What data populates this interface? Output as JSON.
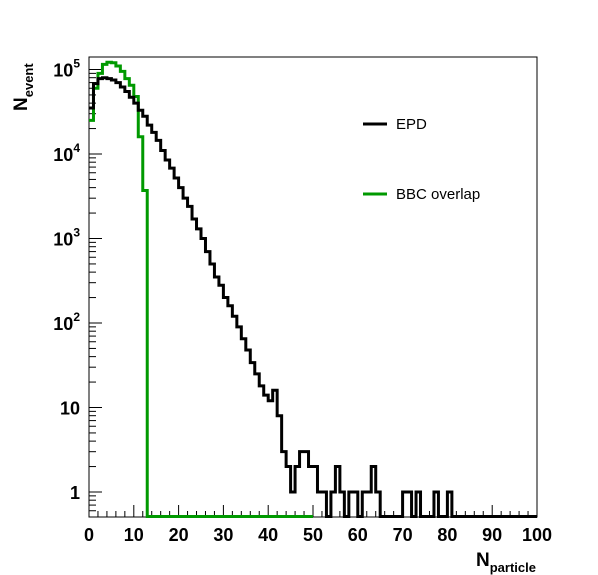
{
  "chart_data": {
    "type": "histogram",
    "x_axis": {
      "title_main": "N",
      "title_sub": "particle",
      "range": [
        0,
        100
      ],
      "tick_values": [
        0,
        10,
        20,
        30,
        40,
        50,
        60,
        70,
        80,
        90,
        100
      ],
      "tick_labels": [
        "0",
        "10",
        "20",
        "30",
        "40",
        "50",
        "60",
        "70",
        "80",
        "90",
        "100"
      ]
    },
    "y_axis": {
      "title_main": "N",
      "title_sub": "event",
      "scale": "log",
      "range": [
        0.5,
        200000
      ],
      "tick_labels": [
        {
          "value": 1,
          "base": "1",
          "exp": ""
        },
        {
          "value": 10,
          "base": "10",
          "exp": ""
        },
        {
          "value": 100,
          "base": "10",
          "exp": "2"
        },
        {
          "value": 1000,
          "base": "10",
          "exp": "3"
        },
        {
          "value": 10000,
          "base": "10",
          "exp": "4"
        },
        {
          "value": 100000,
          "base": "10",
          "exp": "5"
        }
      ]
    },
    "bin_width": 1,
    "grid": false,
    "legend_position": "top-right inside",
    "series": [
      {
        "name": "EPD",
        "color": "#000000",
        "x_start": 0,
        "counts": [
          35000,
          68000,
          78000,
          80000,
          78000,
          75000,
          70000,
          62000,
          55000,
          47000,
          40000,
          33000,
          28000,
          22000,
          18000,
          14500,
          11000,
          8500,
          6800,
          5200,
          4000,
          3000,
          2400,
          1700,
          1300,
          1000,
          700,
          500,
          350,
          280,
          200,
          160,
          120,
          90,
          65,
          48,
          34,
          25,
          18,
          14,
          12,
          16,
          8,
          3,
          2,
          1,
          2,
          3,
          3,
          2,
          2,
          1,
          1,
          0.5,
          1,
          2,
          1,
          0.5,
          1,
          1,
          0.5,
          1,
          1,
          2,
          1,
          0.5,
          0.5,
          0.5,
          0.5,
          0.5,
          1,
          1,
          0.5,
          1,
          0.5,
          0.5,
          0.5,
          1,
          0.5,
          0.5,
          1,
          0.5,
          0.5,
          0.5,
          0.5,
          0.5,
          0.5,
          0.5,
          0.5,
          0.5,
          0.5,
          0.5,
          0.5,
          0.5,
          0.5,
          0.5,
          0.5,
          0.5,
          0.5,
          0.5
        ]
      },
      {
        "name": "BBC overlap",
        "color": "#009900",
        "x_start": 0,
        "counts": [
          25000,
          60000,
          90000,
          115000,
          122000,
          120000,
          110000,
          95000,
          78000,
          65000,
          48000,
          16000,
          3700,
          0.5,
          0.5,
          0.5,
          0.5,
          0.5,
          0.5,
          0.5,
          0.5,
          0.5,
          0.5,
          0.5,
          0.5,
          0.5,
          0.5,
          0.5,
          0.5,
          0.5,
          0.5,
          0.5,
          0.5,
          0.5,
          0.5,
          0.5,
          0.5,
          0.5,
          0.5,
          0.5,
          0.5,
          0.5,
          0.5,
          0.5,
          0.5,
          0.5,
          0.5,
          0.5,
          0.5,
          0.5
        ]
      }
    ]
  }
}
